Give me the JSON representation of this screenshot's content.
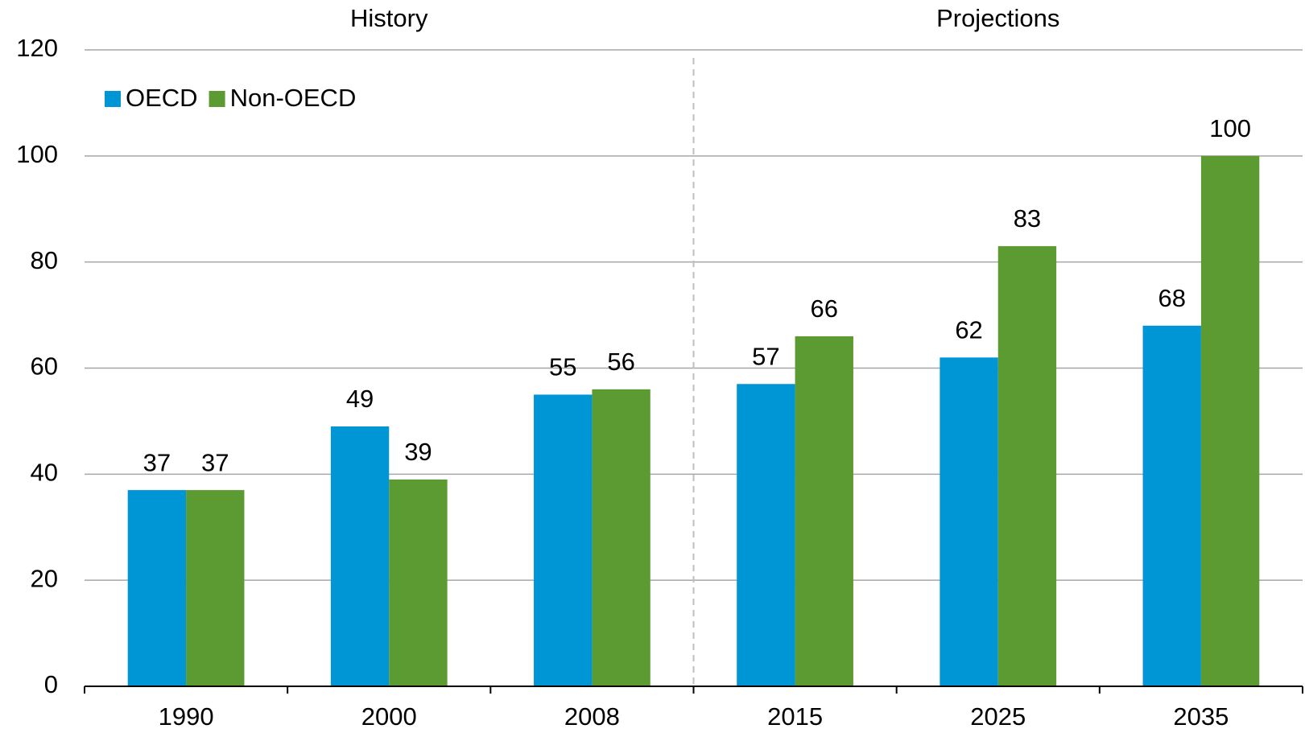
{
  "chart_data": {
    "type": "bar",
    "categories": [
      "1990",
      "2000",
      "2008",
      "2015",
      "2025",
      "2035"
    ],
    "series": [
      {
        "name": "OECD",
        "color": "#0096d6",
        "values": [
          37,
          49,
          55,
          57,
          62,
          68
        ]
      },
      {
        "name": "Non-OECD",
        "color": "#5c9a32",
        "values": [
          37,
          39,
          56,
          66,
          83,
          100
        ]
      }
    ],
    "annotations": [
      "History",
      "Projections"
    ],
    "ylim": [
      0,
      120
    ],
    "yticks": [
      0,
      20,
      40,
      60,
      80,
      100,
      120
    ],
    "grid": true,
    "legend": "top-left"
  }
}
